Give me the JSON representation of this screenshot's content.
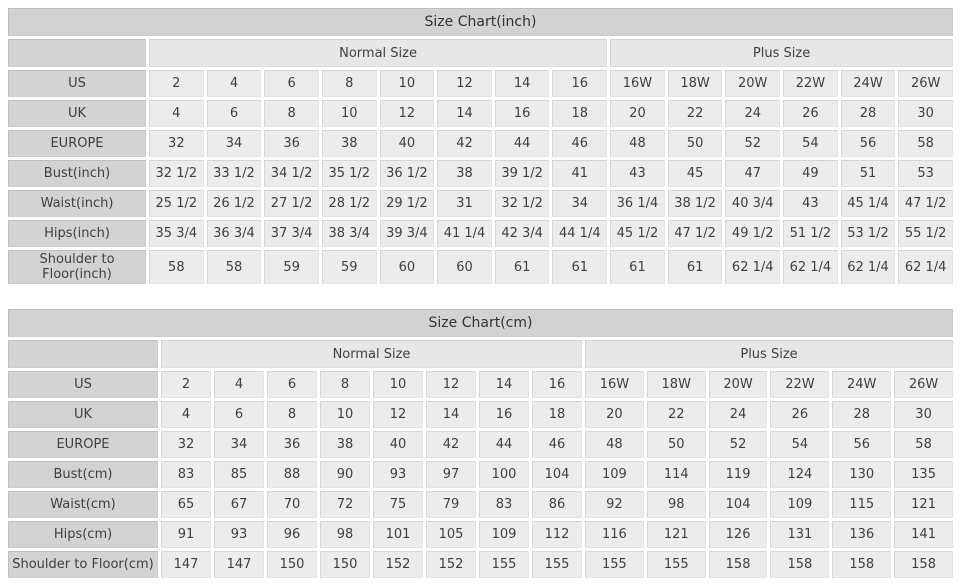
{
  "page": {
    "background": "#ffffff",
    "colors": {
      "title_bg": "#d2d2d2",
      "row_label_bg": "#d3d3d3",
      "group_header_bg": "#e7e7e7",
      "data_cell_bg": "#ececec",
      "text": "#3f3f3f",
      "gap": "#ffffff"
    }
  },
  "tables": [
    {
      "title": "Size Chart(inch)",
      "groups": [
        {
          "label": "Normal Size",
          "span": 8
        },
        {
          "label": "Plus Size",
          "span": 6
        }
      ],
      "rows": [
        {
          "label": "US",
          "values": [
            "2",
            "4",
            "6",
            "8",
            "10",
            "12",
            "14",
            "16",
            "16W",
            "18W",
            "20W",
            "22W",
            "24W",
            "26W"
          ]
        },
        {
          "label": "UK",
          "values": [
            "4",
            "6",
            "8",
            "10",
            "12",
            "14",
            "16",
            "18",
            "20",
            "22",
            "24",
            "26",
            "28",
            "30"
          ]
        },
        {
          "label": "EUROPE",
          "values": [
            "32",
            "34",
            "36",
            "38",
            "40",
            "42",
            "44",
            "46",
            "48",
            "50",
            "52",
            "54",
            "56",
            "58"
          ]
        },
        {
          "label": "Bust(inch)",
          "values": [
            "32 1/2",
            "33 1/2",
            "34 1/2",
            "35 1/2",
            "36 1/2",
            "38",
            "39 1/2",
            "41",
            "43",
            "45",
            "47",
            "49",
            "51",
            "53"
          ]
        },
        {
          "label": "Waist(inch)",
          "values": [
            "25 1/2",
            "26 1/2",
            "27 1/2",
            "28 1/2",
            "29 1/2",
            "31",
            "32 1/2",
            "34",
            "36 1/4",
            "38 1/2",
            "40 3/4",
            "43",
            "45 1/4",
            "47 1/2"
          ]
        },
        {
          "label": "Hips(inch)",
          "values": [
            "35 3/4",
            "36 3/4",
            "37 3/4",
            "38 3/4",
            "39 3/4",
            "41 1/4",
            "42 3/4",
            "44 1/4",
            "45 1/2",
            "47 1/2",
            "49 1/2",
            "51 1/2",
            "53 1/2",
            "55 1/2"
          ]
        },
        {
          "label": "Shoulder to Floor(inch)",
          "values": [
            "58",
            "58",
            "59",
            "59",
            "60",
            "60",
            "61",
            "61",
            "61",
            "61",
            "62 1/4",
            "62 1/4",
            "62 1/4",
            "62 1/4"
          ]
        }
      ]
    },
    {
      "title": "Size Chart(cm)",
      "groups": [
        {
          "label": "Normal Size",
          "span": 8
        },
        {
          "label": "Plus Size",
          "span": 6
        }
      ],
      "rows": [
        {
          "label": "US",
          "values": [
            "2",
            "4",
            "6",
            "8",
            "10",
            "12",
            "14",
            "16",
            "16W",
            "18W",
            "20W",
            "22W",
            "24W",
            "26W"
          ]
        },
        {
          "label": "UK",
          "values": [
            "4",
            "6",
            "8",
            "10",
            "12",
            "14",
            "16",
            "18",
            "20",
            "22",
            "24",
            "26",
            "28",
            "30"
          ]
        },
        {
          "label": "EUROPE",
          "values": [
            "32",
            "34",
            "36",
            "38",
            "40",
            "42",
            "44",
            "46",
            "48",
            "50",
            "52",
            "54",
            "56",
            "58"
          ]
        },
        {
          "label": "Bust(cm)",
          "values": [
            "83",
            "85",
            "88",
            "90",
            "93",
            "97",
            "100",
            "104",
            "109",
            "114",
            "119",
            "124",
            "130",
            "135"
          ]
        },
        {
          "label": "Waist(cm)",
          "values": [
            "65",
            "67",
            "70",
            "72",
            "75",
            "79",
            "83",
            "86",
            "92",
            "98",
            "104",
            "109",
            "115",
            "121"
          ]
        },
        {
          "label": "Hips(cm)",
          "values": [
            "91",
            "93",
            "96",
            "98",
            "101",
            "105",
            "109",
            "112",
            "116",
            "121",
            "126",
            "131",
            "136",
            "141"
          ]
        },
        {
          "label": "Shoulder to Floor(cm)",
          "values": [
            "147",
            "147",
            "150",
            "150",
            "152",
            "152",
            "155",
            "155",
            "155",
            "155",
            "158",
            "158",
            "158",
            "158"
          ]
        }
      ]
    }
  ]
}
